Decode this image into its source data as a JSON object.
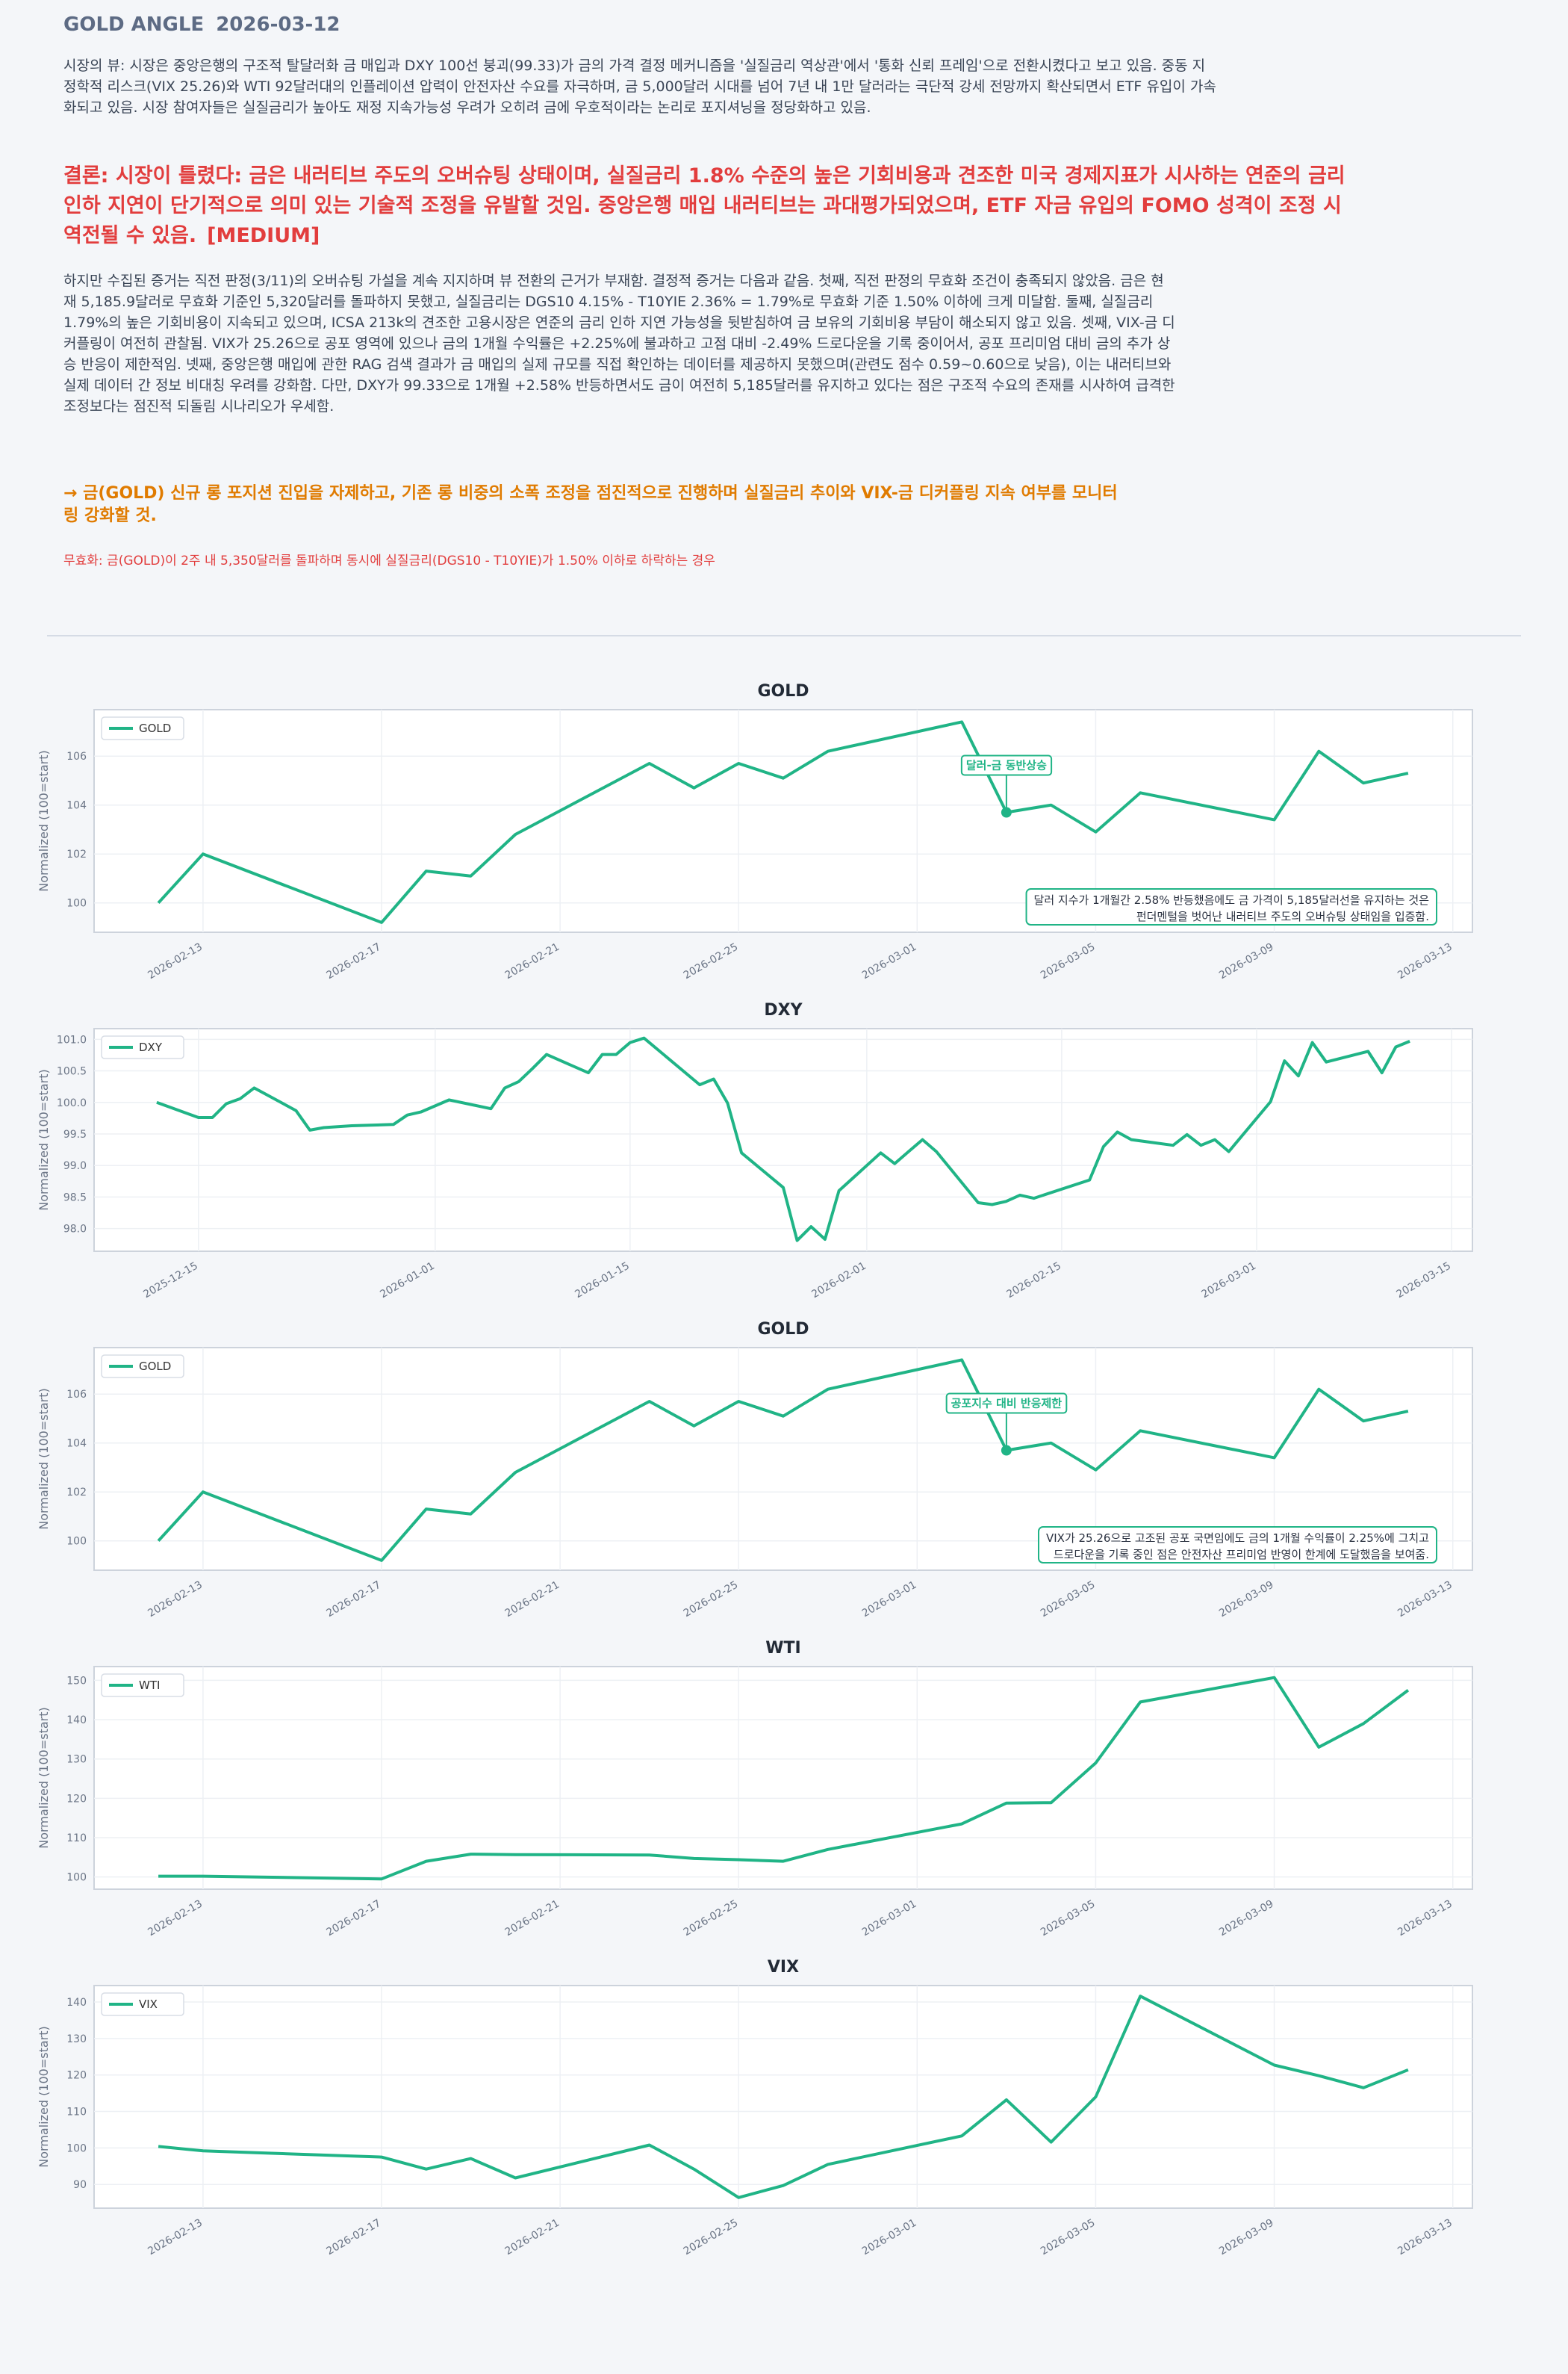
{
  "document": {
    "title": "GOLD ANGLE",
    "date": "2026-03-12",
    "market_view": "시장의 뷰: 시장은 중앙은행의 구조적 탈달러화 금 매입과 DXY 100선 붕괴(99.33)가 금의 가격 결정 메커니즘을 '실질금리 역상관'에서 '통화 신뢰 프레임'으로 전환시켰다고 보고 있음. 중동 지정학적 리스크(VIX 25.26)와 WTI 92달러대의 인플레이션 압력이 안전자산 수요를 자극하며, 금 5,000달러 시대를 넘어 7년 내 1만 달러라는 극단적 강세 전망까지 확산되면서 ETF 유입이 가속화되고 있음. 시장 참여자들은 실질금리가 높아도 재정 지속가능성 우려가 오히려 금에 우호적이라는 논리로 포지셔닝을 정당화하고 있음.",
    "conclusion": "결론: 시장이 틀렸다: 금은 내러티브 주도의 오버슈팅 상태이며, 실질금리 1.8% 수준의 높은 기회비용과 견조한 미국 경제지표가 시사하는 연준의 금리 인하 지연이 단기적으로 의미 있는 기술적 조정을 유발할 것임. 중앙은행 매입 내러티브는 과대평가되었으며, ETF 자금 유입의 FOMO 성격이 조정 시 역전될 수 있음.",
    "confidence": "[MEDIUM]",
    "evidence": "하지만 수집된 증거는 직전 판정(3/11)의 오버슈팅 가설을 계속 지지하며 뷰 전환의 근거가 부재함. 결정적 증거는 다음과 같음. 첫째, 직전 판정의 무효화 조건이 충족되지 않았음. 금은 현재 5,185.9달러로 무효화 기준인 5,320달러를 돌파하지 못했고, 실질금리는 DGS10 4.15% - T10YIE 2.36% = 1.79%로 무효화 기준 1.50% 이하에 크게 미달함. 둘째, 실질금리 1.79%의 높은 기회비용이 지속되고 있으며, ICSA 213k의 견조한 고용시장은 연준의 금리 인하 지연 가능성을 뒷받침하여 금 보유의 기회비용 부담이 해소되지 않고 있음. 셋째, VIX-금 디커플링이 여전히 관찰됨. VIX가 25.26으로 공포 영역에 있으나 금의 1개월 수익률은 +2.25%에 불과하고 고점 대비 -2.49% 드로다운을 기록 중이어서, 공포 프리미엄 대비 금의 추가 상승 반응이 제한적임. 넷째, 중앙은행 매입에 관한 RAG 검색 결과가 금 매입의 실제 규모를 직접 확인하는 데이터를 제공하지 못했으며(관련도 점수 0.59~0.60으로 낮음), 이는 내러티브와 실제 데이터 간 정보 비대칭 우려를 강화함. 다만, DXY가 99.33으로 1개월 +2.58% 반등하면서도 금이 여전히 5,185달러를 유지하고 있다는 점은 구조적 수요의 존재를 시사하여 급격한 조정보다는 점진적 되돌림 시나리오가 우세함.",
    "action": "→ 금(GOLD) 신규 롱 포지션 진입을 자제하고, 기존 롱 비중의 소폭 조정을 점진적으로 진행하며 실질금리 추이와 VIX-금 디커플링 지속 여부를 모니터링 강화할 것.",
    "invalidation": "무효화: 금(GOLD)이 2주 내 5,350달러를 돌파하며 동시에 실질금리(DGS10 - T10YIE)가 1.50% 이하로 하락하는 경우"
  },
  "chart_data": [
    {
      "type": "line",
      "title": "GOLD",
      "ylabel": "Normalized (100=start)",
      "x": [
        "2026-02-12",
        "2026-02-13",
        "2026-02-17",
        "2026-02-18",
        "2026-02-19",
        "2026-02-20",
        "2026-02-23",
        "2026-02-24",
        "2026-02-25",
        "2026-02-26",
        "2026-02-27",
        "2026-03-02",
        "2026-03-03",
        "2026-03-04",
        "2026-03-05",
        "2026-03-06",
        "2026-03-09",
        "2026-03-10",
        "2026-03-11",
        "2026-03-12"
      ],
      "series": [
        {
          "name": "GOLD",
          "color": "#20b486",
          "values": [
            100,
            102,
            99.2,
            101.3,
            101.1,
            102.8,
            105.7,
            104.7,
            105.7,
            105.1,
            106.2,
            107.4,
            103.7,
            104.0,
            102.9,
            104.5,
            103.4,
            106.2,
            104.9,
            105.3
          ]
        }
      ],
      "xlim": [
        "2026-02-10T13:26",
        "2026-03-13T10:34"
      ],
      "xticks": [
        "2026-02-13",
        "2026-02-17",
        "2026-02-21",
        "2026-02-25",
        "2026-03-01",
        "2026-03-05",
        "2026-03-09",
        "2026-03-13"
      ],
      "ylim": [
        98.8,
        107.9
      ],
      "yticks": [
        100,
        102,
        104,
        106
      ],
      "grid": true,
      "legend": "upper left",
      "annotations": [
        {
          "text": "달러-금 동반상승",
          "x": "2026-03-03"
        }
      ],
      "note": [
        "달러 지수가 1개월간 2.58% 반등했음에도 금 가격이 5,185달러선을 유지하는 것은",
        "펀더멘털을 벗어난 내러티브 주도의 오버슈팅 상태임을 입증함."
      ]
    },
    {
      "type": "line",
      "title": "DXY",
      "ylabel": "Normalized (100=start)",
      "x": [
        "2025-12-12",
        "2025-12-15",
        "2025-12-16",
        "2025-12-17",
        "2025-12-18",
        "2025-12-19",
        "2025-12-22",
        "2025-12-23",
        "2025-12-24",
        "2025-12-26",
        "2025-12-29",
        "2025-12-30",
        "2025-12-31",
        "2026-01-02",
        "2026-01-05",
        "2026-01-06",
        "2026-01-07",
        "2026-01-08",
        "2026-01-09",
        "2026-01-12",
        "2026-01-13",
        "2026-01-14",
        "2026-01-15",
        "2026-01-16",
        "2026-01-20",
        "2026-01-21",
        "2026-01-22",
        "2026-01-23",
        "2026-01-26",
        "2026-01-27",
        "2026-01-28",
        "2026-01-29",
        "2026-01-30",
        "2026-02-02",
        "2026-02-03",
        "2026-02-04",
        "2026-02-05",
        "2026-02-06",
        "2026-02-09",
        "2026-02-10",
        "2026-02-11",
        "2026-02-12",
        "2026-02-13",
        "2026-02-17",
        "2026-02-18",
        "2026-02-19",
        "2026-02-20",
        "2026-02-23",
        "2026-02-24",
        "2026-02-25",
        "2026-02-26",
        "2026-02-27",
        "2026-03-02",
        "2026-03-03",
        "2026-03-04",
        "2026-03-05",
        "2026-03-06",
        "2026-03-09",
        "2026-03-10",
        "2026-03-11",
        "2026-03-12"
      ],
      "series": [
        {
          "name": "DXY",
          "color": "#20b486",
          "values": [
            100.0,
            99.76,
            99.76,
            99.98,
            100.06,
            100.23,
            99.87,
            99.56,
            99.6,
            99.63,
            99.65,
            99.8,
            99.85,
            100.04,
            99.9,
            100.23,
            100.33,
            100.54,
            100.76,
            100.47,
            100.76,
            100.76,
            100.95,
            101.02,
            100.28,
            100.37,
            99.99,
            99.2,
            98.65,
            97.81,
            98.03,
            97.83,
            98.6,
            99.2,
            99.03,
            99.22,
            99.41,
            99.22,
            98.41,
            98.38,
            98.43,
            98.53,
            98.48,
            98.77,
            99.3,
            99.53,
            99.41,
            99.32,
            99.49,
            99.32,
            99.41,
            99.22,
            100.01,
            100.66,
            100.42,
            100.95,
            100.64,
            100.81,
            100.47,
            100.88,
            100.97
          ]
        }
      ],
      "xlim": [
        "2025-12-07T12:00",
        "2026-03-16T12:00"
      ],
      "xticks": [
        "2025-12-15",
        "2026-01-01",
        "2026-01-15",
        "2026-02-01",
        "2026-02-15",
        "2026-03-01",
        "2026-03-15"
      ],
      "ylim": [
        97.64,
        101.17
      ],
      "yticks": [
        {
          "value": 98,
          "label": "98.0"
        },
        98.5,
        {
          "value": 99,
          "label": "99.0"
        },
        99.5,
        {
          "value": 100,
          "label": "100.0"
        },
        100.5,
        {
          "value": 101,
          "label": "101.0"
        }
      ],
      "grid": true,
      "legend": "upper left"
    },
    {
      "type": "line",
      "title": "GOLD",
      "ylabel": "Normalized (100=start)",
      "x": [
        "2026-02-12",
        "2026-02-13",
        "2026-02-17",
        "2026-02-18",
        "2026-02-19",
        "2026-02-20",
        "2026-02-23",
        "2026-02-24",
        "2026-02-25",
        "2026-02-26",
        "2026-02-27",
        "2026-03-02",
        "2026-03-03",
        "2026-03-04",
        "2026-03-05",
        "2026-03-06",
        "2026-03-09",
        "2026-03-10",
        "2026-03-11",
        "2026-03-12"
      ],
      "series": [
        {
          "name": "GOLD",
          "color": "#20b486",
          "values": [
            100,
            102,
            99.2,
            101.3,
            101.1,
            102.8,
            105.7,
            104.7,
            105.7,
            105.1,
            106.2,
            107.4,
            103.7,
            104.0,
            102.9,
            104.5,
            103.4,
            106.2,
            104.9,
            105.3
          ]
        }
      ],
      "xlim": [
        "2026-02-10T13:26",
        "2026-03-13T10:34"
      ],
      "xticks": [
        "2026-02-13",
        "2026-02-17",
        "2026-02-21",
        "2026-02-25",
        "2026-03-01",
        "2026-03-05",
        "2026-03-09",
        "2026-03-13"
      ],
      "ylim": [
        98.8,
        107.9
      ],
      "yticks": [
        100,
        102,
        104,
        106
      ],
      "grid": true,
      "legend": "upper left",
      "annotations": [
        {
          "text": "공포지수 대비 반응제한",
          "x": "2026-03-03"
        }
      ],
      "note": [
        "VIX가 25.26으로 고조된 공포 국면임에도 금의 1개월 수익률이 2.25%에 그치고",
        "드로다운을 기록 중인 점은 안전자산 프리미엄 반영이 한계에 도달했음을 보여줌."
      ]
    },
    {
      "type": "line",
      "title": "WTI",
      "ylabel": "Normalized (100=start)",
      "x": [
        "2026-02-12",
        "2026-02-13",
        "2026-02-17",
        "2026-02-18",
        "2026-02-19",
        "2026-02-20",
        "2026-02-23",
        "2026-02-24",
        "2026-02-25",
        "2026-02-26",
        "2026-02-27",
        "2026-03-02",
        "2026-03-03",
        "2026-03-04",
        "2026-03-05",
        "2026-03-06",
        "2026-03-09",
        "2026-03-10",
        "2026-03-11",
        "2026-03-12"
      ],
      "series": [
        {
          "name": "WTI",
          "color": "#20b486",
          "values": [
            100.2,
            100.2,
            99.5,
            104.0,
            105.8,
            105.7,
            105.6,
            104.7,
            104.4,
            104.0,
            107.0,
            113.5,
            118.8,
            118.9,
            129.0,
            144.5,
            150.7,
            133.0,
            139.0,
            147.5
          ]
        }
      ],
      "xlim": [
        "2026-02-10T13:26",
        "2026-03-13T10:34"
      ],
      "xticks": [
        "2026-02-13",
        "2026-02-17",
        "2026-02-21",
        "2026-02-25",
        "2026-03-01",
        "2026-03-05",
        "2026-03-09",
        "2026-03-13"
      ],
      "ylim": [
        96.9,
        153.5
      ],
      "yticks": [
        100,
        110,
        120,
        130,
        140,
        150
      ],
      "grid": true,
      "legend": "upper left"
    },
    {
      "type": "line",
      "title": "VIX",
      "ylabel": "Normalized (100=start)",
      "x": [
        "2026-02-12",
        "2026-02-13",
        "2026-02-17",
        "2026-02-18",
        "2026-02-19",
        "2026-02-20",
        "2026-02-23",
        "2026-02-24",
        "2026-02-25",
        "2026-02-26",
        "2026-02-27",
        "2026-03-02",
        "2026-03-03",
        "2026-03-04",
        "2026-03-05",
        "2026-03-06",
        "2026-03-09",
        "2026-03-10",
        "2026-03-11",
        "2026-03-12"
      ],
      "series": [
        {
          "name": "VIX",
          "color": "#20b486",
          "values": [
            100.4,
            99.2,
            97.5,
            94.2,
            97.1,
            91.8,
            100.8,
            94.2,
            86.4,
            89.7,
            95.5,
            103.3,
            113.2,
            101.6,
            114.0,
            141.6,
            122.7,
            119.8,
            116.5,
            121.4
          ]
        }
      ],
      "xlim": [
        "2026-02-10T13:26",
        "2026-03-13T10:34"
      ],
      "xticks": [
        "2026-02-13",
        "2026-02-17",
        "2026-02-21",
        "2026-02-25",
        "2026-03-01",
        "2026-03-05",
        "2026-03-09",
        "2026-03-13"
      ],
      "ylim": [
        83.5,
        144.5
      ],
      "yticks": [
        90,
        100,
        110,
        120,
        130,
        140
      ],
      "grid": true,
      "legend": "upper left"
    }
  ]
}
